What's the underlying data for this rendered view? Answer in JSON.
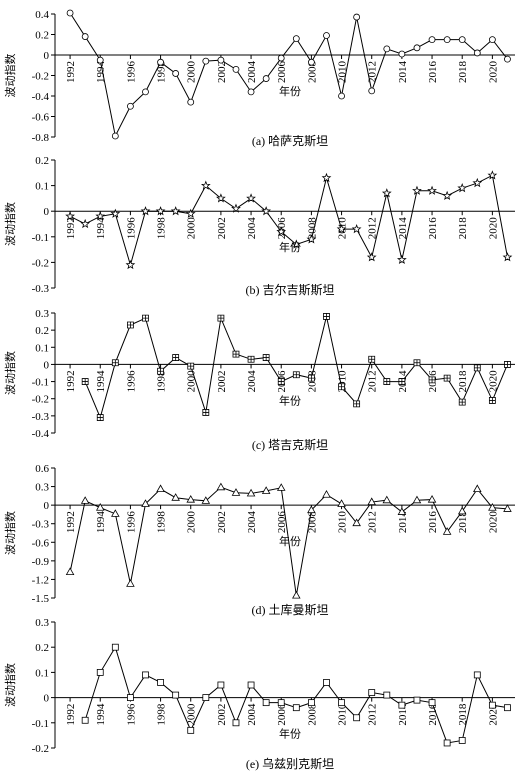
{
  "chart_data": [
    {
      "type": "line",
      "caption": "(a) 哈萨克斯坦",
      "y_label": "波动指数",
      "x_label": "年份",
      "marker": "circle",
      "color": "#000000",
      "x": [
        1992,
        1993,
        1994,
        1995,
        1996,
        1997,
        1998,
        1999,
        2000,
        2001,
        2002,
        2003,
        2004,
        2005,
        2006,
        2007,
        2008,
        2009,
        2010,
        2011,
        2012,
        2013,
        2014,
        2015,
        2016,
        2017,
        2018,
        2019,
        2020,
        2021
      ],
      "values": [
        0.41,
        0.18,
        -0.05,
        -0.79,
        -0.5,
        -0.36,
        -0.07,
        -0.18,
        -0.46,
        -0.06,
        -0.05,
        -0.14,
        -0.36,
        -0.23,
        -0.03,
        0.16,
        -0.07,
        0.19,
        -0.4,
        0.37,
        -0.35,
        0.06,
        0.01,
        0.07,
        0.15,
        0.15,
        0.15,
        0.02,
        0.15,
        -0.04
      ],
      "xlim": [
        1991,
        2021.5
      ],
      "xticks": [
        1992,
        1994,
        1996,
        1998,
        2000,
        2002,
        2004,
        2006,
        2008,
        2010,
        2012,
        2014,
        2016,
        2018,
        2020
      ],
      "ylim": [
        -0.8,
        0.4
      ],
      "yticks": [
        -0.8,
        -0.6,
        -0.4,
        -0.2,
        0,
        0.2,
        0.4
      ]
    },
    {
      "type": "line",
      "caption": "(b) 吉尔吉斯斯坦",
      "y_label": "波动指数",
      "x_label": "年份",
      "marker": "star",
      "color": "#000000",
      "x": [
        1992,
        1993,
        1994,
        1995,
        1996,
        1997,
        1998,
        1999,
        2000,
        2001,
        2002,
        2003,
        2004,
        2005,
        2006,
        2007,
        2008,
        2009,
        2010,
        2011,
        2012,
        2013,
        2014,
        2015,
        2016,
        2017,
        2018,
        2019,
        2020,
        2021
      ],
      "values": [
        -0.02,
        -0.05,
        -0.02,
        -0.01,
        -0.21,
        0.0,
        0.0,
        0.0,
        -0.01,
        0.1,
        0.05,
        0.01,
        0.05,
        0.0,
        -0.08,
        -0.13,
        -0.11,
        0.13,
        -0.07,
        -0.07,
        -0.18,
        0.07,
        -0.19,
        0.08,
        0.08,
        0.06,
        0.09,
        0.11,
        0.14,
        -0.18
      ],
      "xlim": [
        1991,
        2021.5
      ],
      "xticks": [
        1992,
        1994,
        1996,
        1998,
        2000,
        2002,
        2004,
        2006,
        2008,
        2010,
        2012,
        2014,
        2016,
        2018,
        2020
      ],
      "ylim": [
        -0.3,
        0.2
      ],
      "yticks": [
        -0.3,
        -0.2,
        -0.1,
        0,
        0.1,
        0.2
      ]
    },
    {
      "type": "line",
      "caption": "(c) 塔吉克斯坦",
      "y_label": "波动指数",
      "x_label": "年份",
      "marker": "boxplus",
      "color": "#000000",
      "x": [
        1992,
        1993,
        1994,
        1995,
        1996,
        1997,
        1998,
        1999,
        2000,
        2001,
        2002,
        2003,
        2004,
        2005,
        2006,
        2007,
        2008,
        2009,
        2010,
        2011,
        2012,
        2013,
        2014,
        2015,
        2016,
        2017,
        2018,
        2019,
        2020,
        2021
      ],
      "values": [
        null,
        -0.1,
        -0.31,
        0.01,
        0.23,
        0.27,
        -0.04,
        0.04,
        -0.01,
        -0.28,
        0.27,
        0.06,
        0.03,
        0.04,
        -0.1,
        -0.06,
        -0.08,
        0.28,
        -0.13,
        -0.23,
        0.03,
        -0.1,
        -0.1,
        0.01,
        -0.09,
        -0.08,
        -0.22,
        -0.02,
        -0.21,
        0.0
      ],
      "xlim": [
        1991,
        2021.5
      ],
      "xticks": [
        1992,
        1994,
        1996,
        1998,
        2000,
        2002,
        2004,
        2006,
        2008,
        2010,
        2012,
        2014,
        2016,
        2018,
        2020
      ],
      "ylim": [
        -0.4,
        0.3
      ],
      "yticks": [
        -0.4,
        -0.3,
        -0.2,
        -0.1,
        0,
        0.1,
        0.2,
        0.3
      ]
    },
    {
      "type": "line",
      "caption": "(d) 土库曼斯坦",
      "y_label": "波动指数",
      "x_label": "年份",
      "marker": "triangle",
      "color": "#000000",
      "x": [
        1992,
        1993,
        1994,
        1995,
        1996,
        1997,
        1998,
        1999,
        2000,
        2001,
        2002,
        2003,
        2004,
        2005,
        2006,
        2007,
        2008,
        2009,
        2010,
        2011,
        2012,
        2013,
        2014,
        2015,
        2016,
        2017,
        2018,
        2019,
        2020,
        2021
      ],
      "values": [
        -1.08,
        0.07,
        -0.04,
        -0.14,
        -1.27,
        0.02,
        0.26,
        0.12,
        0.09,
        0.07,
        0.29,
        0.2,
        0.19,
        0.23,
        0.28,
        -1.46,
        -0.08,
        0.17,
        0.02,
        -0.29,
        0.05,
        0.08,
        -0.11,
        0.08,
        0.09,
        -0.43,
        -0.1,
        0.26,
        -0.04,
        -0.06
      ],
      "xlim": [
        1991,
        2021.5
      ],
      "xticks": [
        1992,
        1994,
        1996,
        1998,
        2000,
        2002,
        2004,
        2006,
        2008,
        2010,
        2012,
        2014,
        2016,
        2018,
        2020
      ],
      "ylim": [
        -1.5,
        0.6
      ],
      "yticks": [
        -1.5,
        -1.2,
        -0.9,
        -0.6,
        -0.3,
        0,
        0.3,
        0.6
      ]
    },
    {
      "type": "line",
      "caption": "(e) 乌兹别克斯坦",
      "y_label": "波动指数",
      "x_label": "年份",
      "marker": "square",
      "color": "#000000",
      "x": [
        1992,
        1993,
        1994,
        1995,
        1996,
        1997,
        1998,
        1999,
        2000,
        2001,
        2002,
        2003,
        2004,
        2005,
        2006,
        2007,
        2008,
        2009,
        2010,
        2011,
        2012,
        2013,
        2014,
        2015,
        2016,
        2017,
        2018,
        2019,
        2020,
        2021
      ],
      "values": [
        null,
        -0.09,
        0.1,
        0.2,
        0.0,
        0.09,
        0.06,
        0.01,
        -0.13,
        0.0,
        0.05,
        -0.1,
        0.05,
        -0.02,
        -0.02,
        -0.04,
        -0.02,
        0.06,
        -0.02,
        -0.08,
        0.02,
        0.01,
        -0.03,
        -0.01,
        -0.02,
        -0.18,
        -0.17,
        0.09,
        -0.03,
        -0.04
      ],
      "xlim": [
        1991,
        2021.5
      ],
      "xticks": [
        1992,
        1994,
        1996,
        1998,
        2000,
        2002,
        2004,
        2006,
        2008,
        2010,
        2012,
        2014,
        2016,
        2018,
        2020
      ],
      "ylim": [
        -0.2,
        0.3
      ],
      "yticks": [
        -0.2,
        -0.1,
        0,
        0.1,
        0.2,
        0.3
      ]
    }
  ]
}
